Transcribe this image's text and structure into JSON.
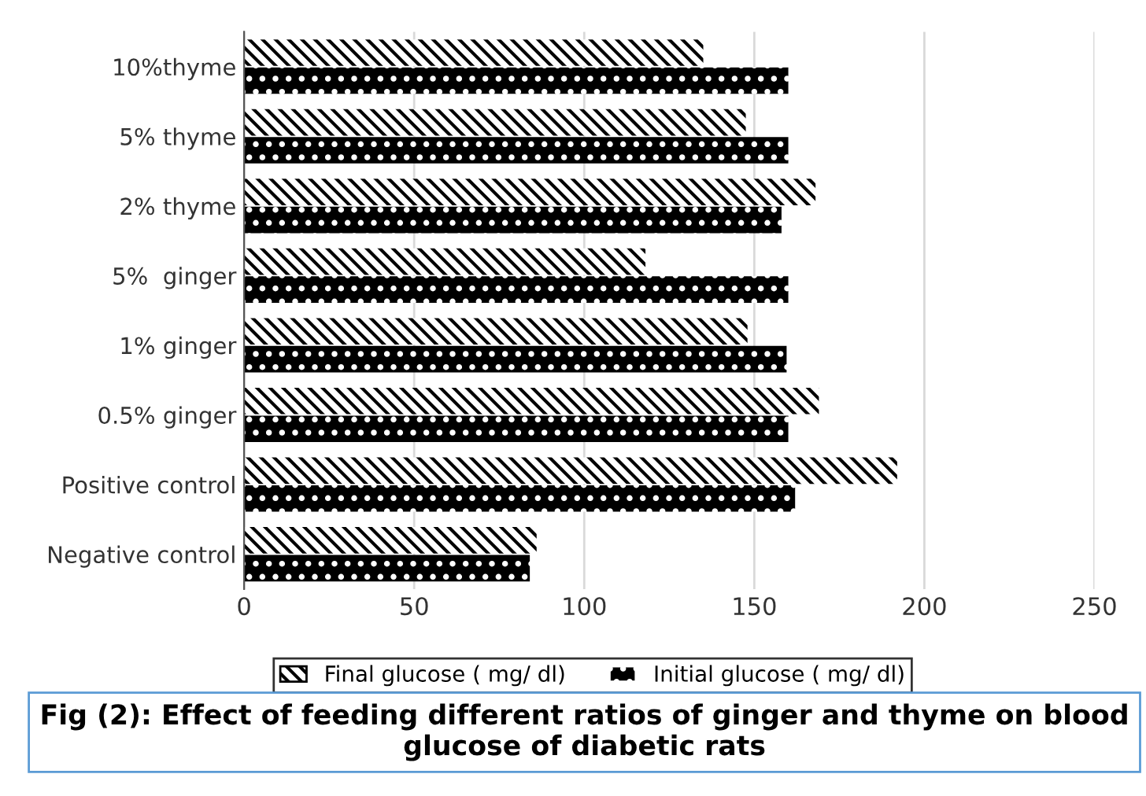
{
  "chart_data": {
    "type": "bar",
    "orientation": "horizontal",
    "title": "Fig (2): Effect of feeding different ratios of ginger and thyme on blood glucose of diabetic rats",
    "categories": [
      "10%thyme",
      "5% thyme",
      "2% thyme",
      "5%  ginger",
      "1% ginger",
      "0.5% ginger",
      "Positive control",
      "Negative control"
    ],
    "series": [
      {
        "name": "Final glucose ( mg/ dl)",
        "color": "#000000",
        "values": [
          135,
          147.5,
          168,
          118,
          148,
          169,
          192,
          86
        ]
      },
      {
        "name": "Initial glucose ( mg/ dl)",
        "color": "#000000",
        "values": [
          160,
          160,
          158,
          160,
          159.5,
          160,
          162,
          84
        ]
      }
    ],
    "xlim": [
      0,
      250
    ],
    "xticks": [
      0,
      50,
      100,
      150,
      200,
      250
    ],
    "grid": "x",
    "legend": "bottom"
  }
}
